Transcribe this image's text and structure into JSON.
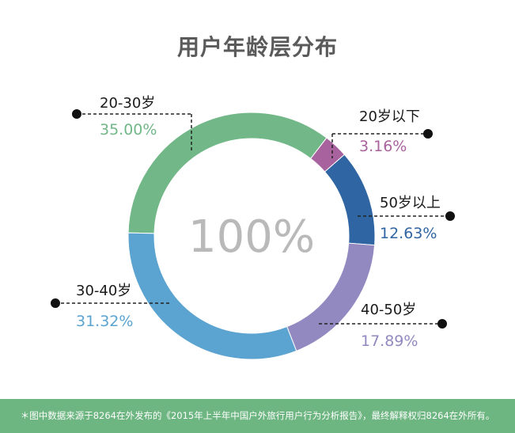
{
  "chart_data": {
    "type": "pie",
    "title": "用户年龄层分布",
    "center_label": "100%",
    "slices": [
      {
        "label": "20-30岁",
        "value": 35.0,
        "display": "35.00%",
        "color": "#71b787"
      },
      {
        "label": "20岁以下",
        "value": 3.16,
        "display": "3.16%",
        "color": "#a8629d"
      },
      {
        "label": "50岁以上",
        "value": 12.63,
        "display": "12.63%",
        "color": "#2f65a3"
      },
      {
        "label": "40-50岁",
        "value": 17.89,
        "display": "17.89%",
        "color": "#9189bf"
      },
      {
        "label": "30-40岁",
        "value": 31.32,
        "display": "31.32%",
        "color": "#5ba3d0"
      }
    ]
  },
  "footer": {
    "note": "＊图中数据来源于8264在外发布的《2015年上半年中国户外旅行用户行为分析报告》，最终解释权归8264在外所有。"
  }
}
